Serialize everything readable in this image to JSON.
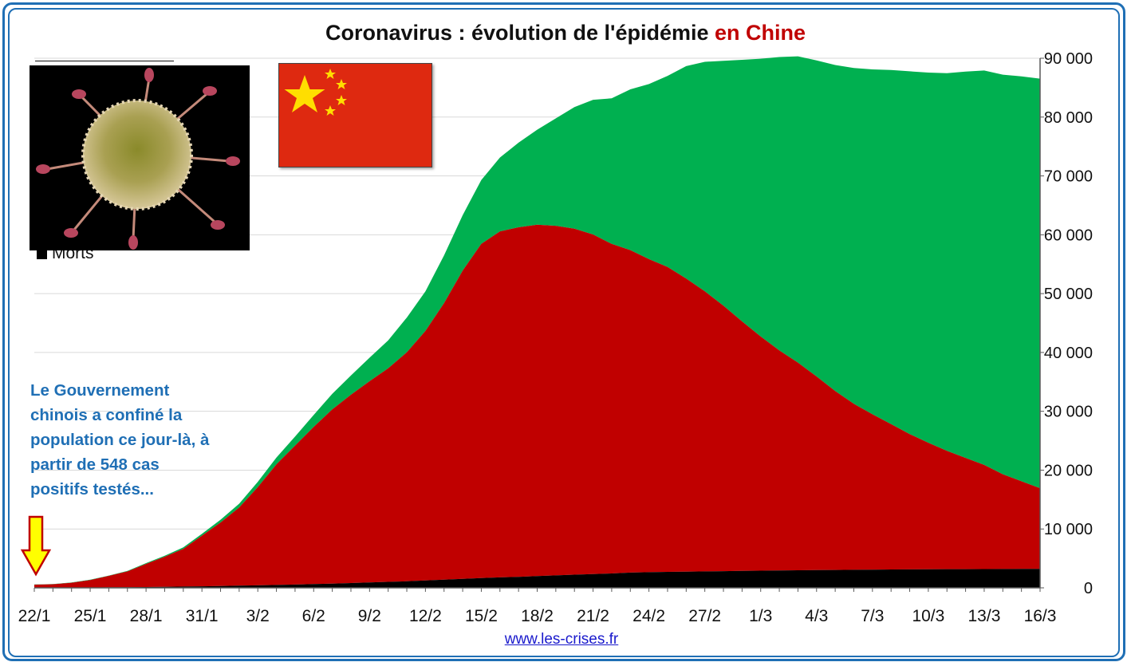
{
  "title": {
    "main": "Coronavirus : évolution de l'épidémie ",
    "accent": "en Chine"
  },
  "legend": {
    "partial_item": "Morts"
  },
  "annotation": {
    "text": "Le Gouvernement chinois a confiné la population ce jour-là, à partir de 548 cas positifs testés..."
  },
  "source": "www.les-crises.fr",
  "icons": {
    "virus": "coronavirus-image",
    "flag": "china-flag",
    "arrow": "down-arrow-icon"
  },
  "colors": {
    "recovered": "#00b050",
    "active": "#c00000",
    "deaths": "#000000",
    "frame": "#1f6fb5",
    "annotation": "#1f6fb5",
    "arrow_fill": "#ffff00",
    "arrow_stroke": "#c00000"
  },
  "chart_data": {
    "type": "area",
    "stacked": true,
    "x_ticks": [
      "22/1",
      "25/1",
      "28/1",
      "31/1",
      "3/2",
      "6/2",
      "9/2",
      "12/2",
      "15/2",
      "18/2",
      "21/2",
      "24/2",
      "27/2",
      "1/3",
      "4/3",
      "7/3",
      "10/3",
      "13/3",
      "16/3"
    ],
    "y_ticks": [
      "0",
      "10 000",
      "20 000",
      "30 000",
      "40 000",
      "50 000",
      "60 000",
      "70 000",
      "80 000",
      "90 000"
    ],
    "ylim": [
      0,
      90000
    ],
    "y_axis_position": "right",
    "grid": true,
    "series": [
      {
        "name": "Morts",
        "values": [
          17,
          25,
          41,
          56,
          80,
          106,
          132,
          170,
          213,
          259,
          304,
          361,
          425,
          490,
          562,
          636,
          722,
          811,
          908,
          1016,
          1113,
          1259,
          1380,
          1523,
          1665,
          1770,
          1868,
          2004,
          2118,
          2236,
          2345,
          2442,
          2592,
          2663,
          2715,
          2744,
          2788,
          2835,
          2870,
          2912,
          2943,
          2981,
          3012,
          3042,
          3070,
          3097,
          3119,
          3136,
          3158,
          3169,
          3176,
          3189,
          3199,
          3213,
          3226
        ]
      },
      {
        "name": "",
        "values": [
          530,
          580,
          830,
          1270,
          1950,
          2680,
          3940,
          5120,
          6410,
          8600,
          10800,
          13300,
          16700,
          20500,
          23600,
          26700,
          29600,
          32000,
          34200,
          36300,
          38900,
          42400,
          47000,
          52400,
          56800,
          58800,
          59400,
          59700,
          59400,
          58800,
          57700,
          56000,
          54800,
          53200,
          51800,
          49800,
          47600,
          45100,
          42400,
          39800,
          37400,
          35300,
          32900,
          30400,
          28200,
          26400,
          24700,
          23000,
          21500,
          20100,
          18900,
          17700,
          16100,
          14900,
          13700
        ]
      },
      {
        "name": "",
        "values": [
          28,
          34,
          38,
          51,
          60,
          103,
          124,
          171,
          243,
          328,
          475,
          632,
          892,
          1153,
          1540,
          2050,
          2649,
          3281,
          3996,
          4740,
          5911,
          6723,
          8096,
          9419,
          10844,
          12552,
          14376,
          16155,
          18264,
          20659,
          22888,
          24734,
          27323,
          29745,
          32495,
          36117,
          39002,
          41625,
          44462,
          47204,
          49856,
          52045,
          53726,
          55404,
          57065,
          58600,
          60181,
          61644,
          62901,
          64196,
          65660,
          67017,
          67910,
          68798,
          69601
        ]
      }
    ]
  }
}
